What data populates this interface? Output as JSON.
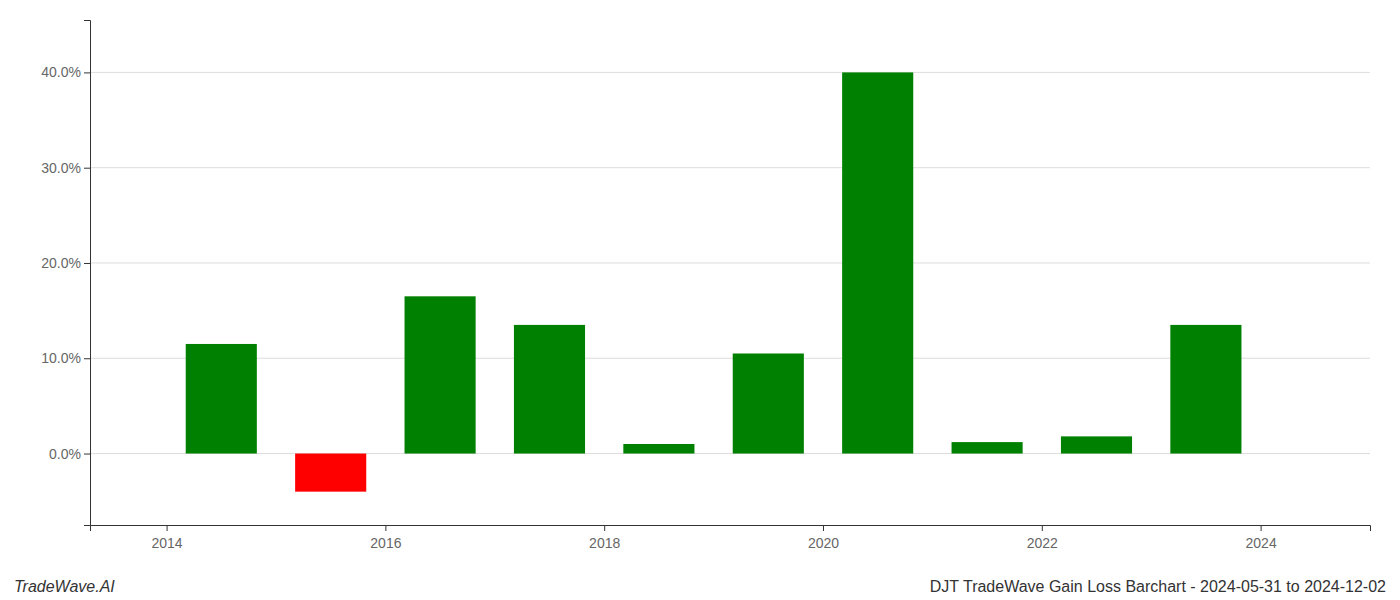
{
  "chart_data": {
    "type": "bar",
    "title": "DJT TradeWave Gain Loss Barchart - 2024-05-31 to 2024-12-02",
    "annotations": [
      "TradeWave.AI"
    ],
    "x": [
      2014,
      2015,
      2016,
      2017,
      2018,
      2019,
      2020,
      2021,
      2022,
      2023
    ],
    "values": [
      0.115,
      -0.04,
      0.165,
      0.135,
      0.01,
      0.105,
      0.4,
      0.012,
      0.018,
      0.135
    ],
    "colors": [
      "#008000",
      "#ff0000",
      "#008000",
      "#008000",
      "#008000",
      "#008000",
      "#008000",
      "#008000",
      "#008000",
      "#008000"
    ],
    "xlim": [
      2013.3,
      2025.0
    ],
    "xticks": [
      2014,
      2016,
      2018,
      2020,
      2022,
      2024
    ],
    "ylim": [
      -0.075,
      0.455
    ],
    "yticks": [
      {
        "value": 0.0,
        "label": "0.0%"
      },
      {
        "value": 0.1,
        "label": "10.0%"
      },
      {
        "value": 0.2,
        "label": "20.0%"
      },
      {
        "value": 0.3,
        "label": "30.0%"
      },
      {
        "value": 0.4,
        "label": "40.0%"
      }
    ],
    "grid": true
  }
}
